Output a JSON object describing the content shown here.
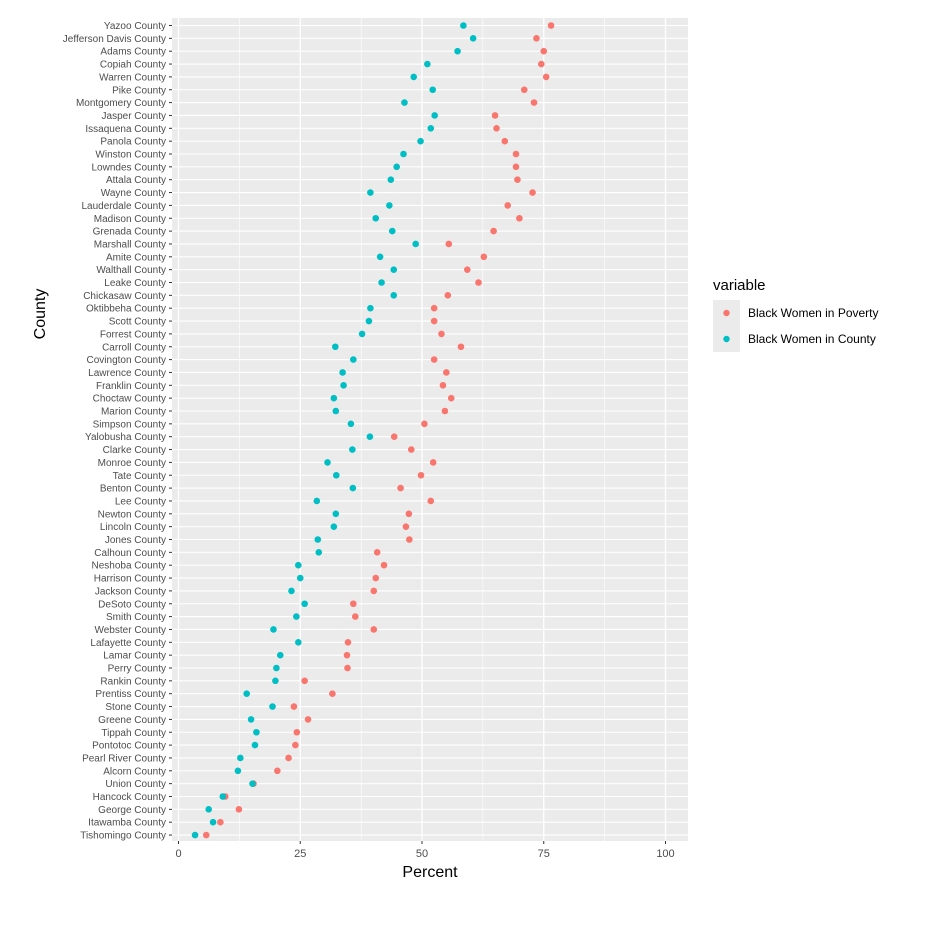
{
  "chart_data": {
    "type": "scatter",
    "xlabel": "Percent",
    "ylabel": "County",
    "xlim": [
      0,
      100
    ],
    "xticks": [
      0,
      25,
      50,
      75,
      100
    ],
    "grid": true,
    "legend": {
      "title": "variable",
      "placement": "right"
    },
    "categories": [
      "Yazoo County",
      "Jefferson Davis County",
      "Adams County",
      "Copiah County",
      "Warren County",
      "Pike County",
      "Montgomery County",
      "Jasper County",
      "Issaquena County",
      "Panola County",
      "Winston County",
      "Lowndes County",
      "Attala County",
      "Wayne County",
      "Lauderdale County",
      "Madison County",
      "Grenada County",
      "Marshall County",
      "Amite County",
      "Walthall County",
      "Leake County",
      "Chickasaw County",
      "Oktibbeha County",
      "Scott County",
      "Forrest County",
      "Carroll County",
      "Covington County",
      "Lawrence County",
      "Franklin County",
      "Choctaw County",
      "Marion County",
      "Simpson County",
      "Yalobusha County",
      "Clarke County",
      "Monroe County",
      "Tate County",
      "Benton County",
      "Lee County",
      "Newton County",
      "Lincoln County",
      "Jones County",
      "Calhoun County",
      "Neshoba County",
      "Harrison County",
      "Jackson County",
      "DeSoto County",
      "Smith County",
      "Webster County",
      "Lafayette County",
      "Lamar County",
      "Perry County",
      "Rankin County",
      "Prentiss County",
      "Stone County",
      "Greene County",
      "Tippah County",
      "Pontotoc County",
      "Pearl River County",
      "Alcorn County",
      "Union County",
      "Hancock County",
      "George County",
      "Itawamba County",
      "Tishomingo County"
    ],
    "series": [
      {
        "name": "Black Women in Poverty",
        "color": "#F8766D",
        "values": [
          76.5,
          73.5,
          75.0,
          74.5,
          75.5,
          71.0,
          73.0,
          65.0,
          65.3,
          67.0,
          69.3,
          69.3,
          69.6,
          72.7,
          67.6,
          70.0,
          64.7,
          55.5,
          62.7,
          59.3,
          61.6,
          55.3,
          52.5,
          52.5,
          54.0,
          58.0,
          52.5,
          55.0,
          54.3,
          56.0,
          54.7,
          50.5,
          44.3,
          47.8,
          52.3,
          49.8,
          45.6,
          51.8,
          47.3,
          46.7,
          47.4,
          40.8,
          42.2,
          40.5,
          40.1,
          35.9,
          36.3,
          40.1,
          34.8,
          34.6,
          34.7,
          25.9,
          31.6,
          23.7,
          26.6,
          24.3,
          24.0,
          22.6,
          20.3,
          15.4,
          9.6,
          12.4,
          8.6,
          5.7
        ]
      },
      {
        "name": "Black Women in County",
        "color": "#00BFC4",
        "values": [
          58.5,
          60.5,
          57.3,
          51.1,
          48.3,
          52.2,
          46.4,
          52.6,
          51.8,
          49.7,
          46.2,
          44.8,
          43.6,
          39.4,
          43.3,
          40.5,
          43.9,
          48.7,
          41.4,
          44.2,
          41.7,
          44.2,
          39.4,
          39.1,
          37.7,
          32.2,
          35.9,
          33.7,
          33.9,
          31.9,
          32.3,
          35.4,
          39.3,
          35.7,
          30.6,
          32.4,
          35.8,
          28.4,
          32.3,
          31.9,
          28.6,
          28.8,
          24.6,
          25.0,
          23.2,
          25.9,
          24.2,
          19.5,
          24.6,
          20.9,
          20.1,
          19.9,
          14.0,
          19.3,
          14.9,
          16.0,
          15.7,
          12.7,
          12.2,
          15.2,
          9.1,
          6.2,
          7.1,
          3.4
        ]
      }
    ]
  }
}
